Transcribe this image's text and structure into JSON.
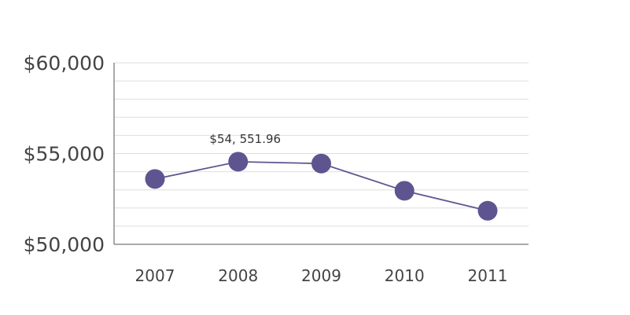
{
  "chart_data": {
    "type": "line",
    "title": "",
    "xlabel": "",
    "ylabel": "",
    "categories": [
      "2007",
      "2008",
      "2009",
      "2010",
      "2011"
    ],
    "values": [
      53600,
      54551.96,
      54450,
      52950,
      51850
    ],
    "ylim": [
      50000,
      60000
    ],
    "yticks": [
      "$50,000",
      "$55,000",
      "$60,000"
    ],
    "ytick_values": [
      50000,
      55000,
      60000
    ],
    "minor_grid_step": 1000,
    "data_label": {
      "index": 1,
      "text": "$54, 551.96"
    },
    "grid": true,
    "legend": "none",
    "colors": {
      "series": "#5e5590",
      "grid": "#dedede",
      "axis": "#555555"
    }
  }
}
